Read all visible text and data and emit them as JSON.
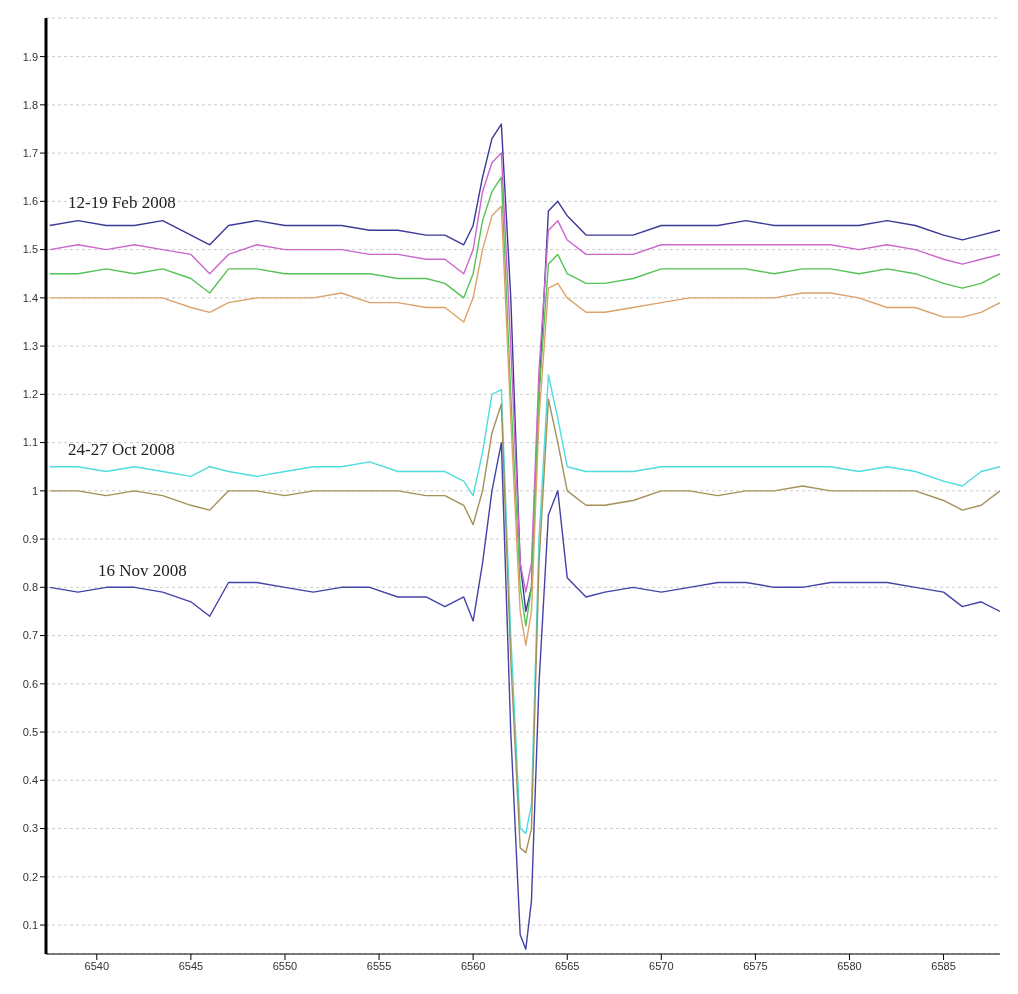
{
  "chart_data": {
    "type": "line",
    "x": [
      6537.5,
      6539,
      6540.5,
      6542,
      6543.5,
      6545,
      6546,
      6547,
      6548.5,
      6550,
      6551.5,
      6553,
      6554.5,
      6556,
      6557.5,
      6558.5,
      6559.5,
      6560,
      6560.5,
      6561,
      6561.5,
      6562,
      6562.5,
      6562.8,
      6563.1,
      6563.5,
      6564,
      6564.5,
      6565,
      6566,
      6567,
      6568.5,
      6570,
      6571.5,
      6573,
      6574.5,
      6576,
      6577.5,
      6579,
      6580.5,
      6582,
      6583.5,
      6585,
      6586,
      6587,
      6588
    ],
    "series": [
      {
        "color": "#3a3a96",
        "values": [
          1.55,
          1.56,
          1.55,
          1.55,
          1.56,
          1.53,
          1.51,
          1.55,
          1.56,
          1.55,
          1.55,
          1.55,
          1.54,
          1.54,
          1.53,
          1.53,
          1.51,
          1.55,
          1.65,
          1.73,
          1.76,
          1.4,
          0.85,
          0.75,
          0.8,
          1.2,
          1.58,
          1.6,
          1.57,
          1.53,
          1.53,
          1.53,
          1.55,
          1.55,
          1.55,
          1.56,
          1.55,
          1.55,
          1.55,
          1.55,
          1.56,
          1.55,
          1.53,
          1.52,
          1.53,
          1.54
        ]
      },
      {
        "color": "#cc66cc",
        "values": [
          1.5,
          1.51,
          1.5,
          1.51,
          1.5,
          1.49,
          1.45,
          1.49,
          1.51,
          1.5,
          1.5,
          1.5,
          1.49,
          1.49,
          1.48,
          1.48,
          1.45,
          1.5,
          1.62,
          1.68,
          1.7,
          1.3,
          0.85,
          0.79,
          0.85,
          1.25,
          1.54,
          1.56,
          1.52,
          1.49,
          1.49,
          1.49,
          1.51,
          1.51,
          1.51,
          1.51,
          1.51,
          1.51,
          1.51,
          1.5,
          1.51,
          1.5,
          1.48,
          1.47,
          1.48,
          1.49
        ]
      },
      {
        "color": "#55c255",
        "values": [
          1.45,
          1.45,
          1.46,
          1.45,
          1.46,
          1.44,
          1.41,
          1.46,
          1.46,
          1.45,
          1.45,
          1.45,
          1.45,
          1.44,
          1.44,
          1.43,
          1.4,
          1.45,
          1.56,
          1.62,
          1.65,
          1.2,
          0.8,
          0.72,
          0.8,
          1.2,
          1.47,
          1.49,
          1.45,
          1.43,
          1.43,
          1.44,
          1.46,
          1.46,
          1.46,
          1.46,
          1.45,
          1.46,
          1.46,
          1.45,
          1.46,
          1.45,
          1.43,
          1.42,
          1.43,
          1.45
        ]
      },
      {
        "color": "#dba36a",
        "values": [
          1.4,
          1.4,
          1.4,
          1.4,
          1.4,
          1.38,
          1.37,
          1.39,
          1.4,
          1.4,
          1.4,
          1.41,
          1.39,
          1.39,
          1.38,
          1.38,
          1.35,
          1.4,
          1.5,
          1.57,
          1.59,
          1.15,
          0.75,
          0.68,
          0.75,
          1.15,
          1.42,
          1.43,
          1.4,
          1.37,
          1.37,
          1.38,
          1.39,
          1.4,
          1.4,
          1.4,
          1.4,
          1.41,
          1.41,
          1.4,
          1.38,
          1.38,
          1.36,
          1.36,
          1.37,
          1.39
        ]
      },
      {
        "color": "#4fdcdc",
        "values": [
          1.05,
          1.05,
          1.04,
          1.05,
          1.04,
          1.03,
          1.05,
          1.04,
          1.03,
          1.04,
          1.05,
          1.05,
          1.06,
          1.04,
          1.04,
          1.04,
          1.02,
          0.99,
          1.08,
          1.2,
          1.21,
          0.7,
          0.3,
          0.29,
          0.35,
          0.9,
          1.24,
          1.15,
          1.05,
          1.04,
          1.04,
          1.04,
          1.05,
          1.05,
          1.05,
          1.05,
          1.05,
          1.05,
          1.05,
          1.04,
          1.05,
          1.04,
          1.02,
          1.01,
          1.04,
          1.05
        ]
      },
      {
        "color": "#a39158",
        "values": [
          1.0,
          1.0,
          0.99,
          1.0,
          0.99,
          0.97,
          0.96,
          1.0,
          1.0,
          0.99,
          1.0,
          1.0,
          1.0,
          1.0,
          0.99,
          0.99,
          0.97,
          0.93,
          1.0,
          1.12,
          1.18,
          0.65,
          0.26,
          0.25,
          0.3,
          0.85,
          1.19,
          1.1,
          1.0,
          0.97,
          0.97,
          0.98,
          1.0,
          1.0,
          0.99,
          1.0,
          1.0,
          1.01,
          1.0,
          1.0,
          1.0,
          1.0,
          0.98,
          0.96,
          0.97,
          1.0
        ]
      },
      {
        "color": "#4343a6",
        "values": [
          0.8,
          0.79,
          0.8,
          0.8,
          0.79,
          0.77,
          0.74,
          0.81,
          0.81,
          0.8,
          0.79,
          0.8,
          0.8,
          0.78,
          0.78,
          0.76,
          0.78,
          0.73,
          0.85,
          1.0,
          1.1,
          0.5,
          0.08,
          0.05,
          0.15,
          0.6,
          0.95,
          1.0,
          0.82,
          0.78,
          0.79,
          0.8,
          0.79,
          0.8,
          0.81,
          0.81,
          0.8,
          0.8,
          0.81,
          0.81,
          0.81,
          0.8,
          0.79,
          0.76,
          0.77,
          0.75
        ]
      }
    ],
    "xlim": [
      6537.3,
      6588
    ],
    "xticks": [
      6540,
      6545,
      6550,
      6555,
      6560,
      6565,
      6570,
      6575,
      6580,
      6585
    ],
    "ylim": [
      0.04,
      1.98
    ],
    "yticks": [
      0.1,
      0.2,
      0.3,
      0.4,
      0.5,
      0.6,
      0.7,
      0.8,
      0.9,
      1,
      1.1,
      1.2,
      1.3,
      1.4,
      1.5,
      1.6,
      1.7,
      1.8,
      1.9
    ],
    "grid": "y",
    "annotations": [
      "12-19 Feb 2008",
      "24-27 Oct 2008",
      "16 Nov 2008"
    ]
  }
}
